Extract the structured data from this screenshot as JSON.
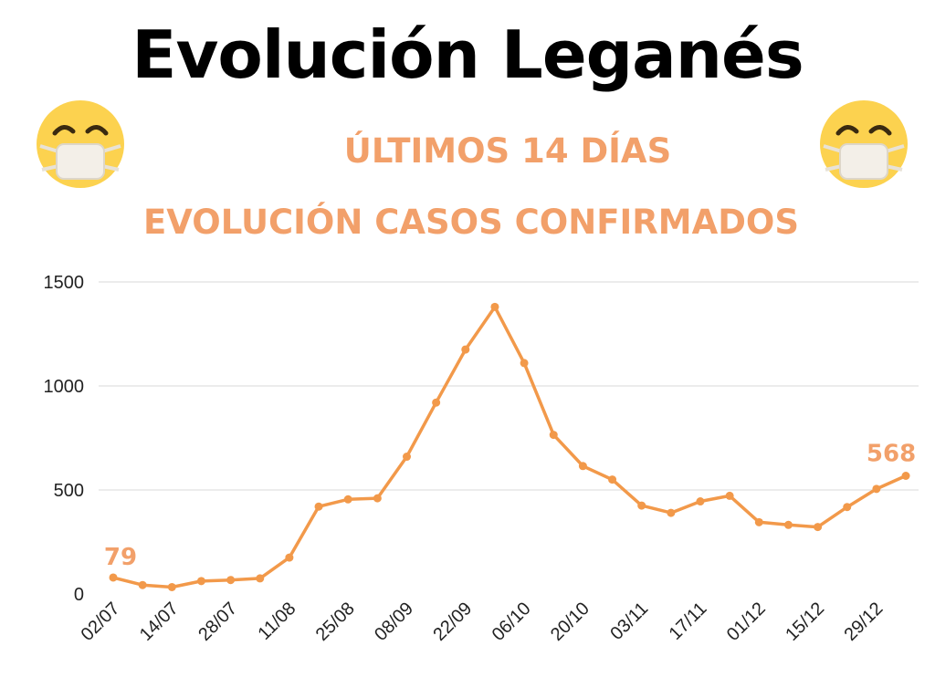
{
  "header": {
    "title": "Evolución Leganés",
    "subtitle_1": "ÚLTIMOS 14 DÍAS",
    "subtitle_2": "EVOLUCIÓN CASOS CONFIRMADOS"
  },
  "icons": {
    "left": "face-with-mask-icon",
    "right": "face-with-mask-icon"
  },
  "colors": {
    "accent": "#f2994a",
    "label": "#f2a06a",
    "grid": "#d9d9d9"
  },
  "chart_data": {
    "type": "line",
    "x": [
      "02/07",
      "",
      "14/07",
      "",
      "28/07",
      "",
      "11/08",
      "",
      "25/08",
      "",
      "08/09",
      "",
      "22/09",
      "",
      "06/10",
      "",
      "20/10",
      "",
      "03/11",
      "",
      "17/11",
      "",
      "01/12",
      "",
      "15/12",
      "",
      "29/12",
      ""
    ],
    "x_tick_labels": [
      "02/07",
      "14/07",
      "28/07",
      "11/08",
      "25/08",
      "08/09",
      "22/09",
      "06/10",
      "20/10",
      "03/11",
      "17/11",
      "01/12",
      "15/12",
      "29/12"
    ],
    "series": [
      {
        "values": [
          79,
          43,
          33,
          62,
          67,
          75,
          175,
          420,
          455,
          460,
          660,
          920,
          1175,
          1380,
          1110,
          765,
          615,
          550,
          425,
          390,
          445,
          472,
          345,
          332,
          322,
          418,
          505,
          568
        ]
      }
    ],
    "annotations": [
      "79",
      "568"
    ],
    "yticks": [
      0,
      500,
      1000,
      1500
    ],
    "ylim": [
      0,
      1500
    ],
    "grid": true,
    "legend": "none"
  }
}
